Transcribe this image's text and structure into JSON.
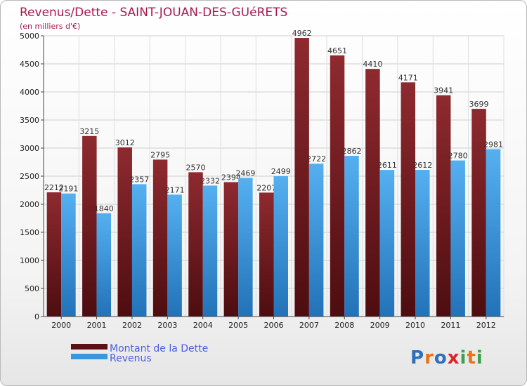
{
  "chart_data": {
    "type": "bar",
    "title": "Revenus/Dette - SAINT-JOUAN-DES-GUéRETS",
    "subtitle": "(en milliers d'€)",
    "categories": [
      "2000",
      "2001",
      "2002",
      "2003",
      "2004",
      "2005",
      "2006",
      "2007",
      "2008",
      "2009",
      "2010",
      "2011",
      "2012"
    ],
    "series": [
      {
        "name": "Montant de la Dette",
        "values": [
          2212,
          3215,
          3012,
          2795,
          2570,
          2394,
          2207,
          4962,
          4651,
          4410,
          4171,
          3941,
          3699
        ],
        "color": "#7a1f24"
      },
      {
        "name": "Revenus",
        "values": [
          2191,
          1840,
          2357,
          2171,
          2332,
          2469,
          2499,
          2722,
          2862,
          2611,
          2612,
          2780,
          2981
        ],
        "color": "#3b97dd"
      }
    ],
    "ylim": [
      0,
      5000
    ],
    "yticks": [
      0,
      500,
      1000,
      1500,
      2000,
      2500,
      3000,
      3500,
      4000,
      4500,
      5000
    ],
    "grid": true,
    "legend_position": "bottom-left"
  },
  "logo": {
    "text": "Proxiti",
    "letters": [
      "P",
      "r",
      "o",
      "x",
      "i",
      "t",
      "i"
    ],
    "colors": [
      "#2f6fb8",
      "#e8731a",
      "#2f6fb8",
      "#d9262a",
      "#3aa24a",
      "#e8731a",
      "#3aa24a"
    ]
  }
}
